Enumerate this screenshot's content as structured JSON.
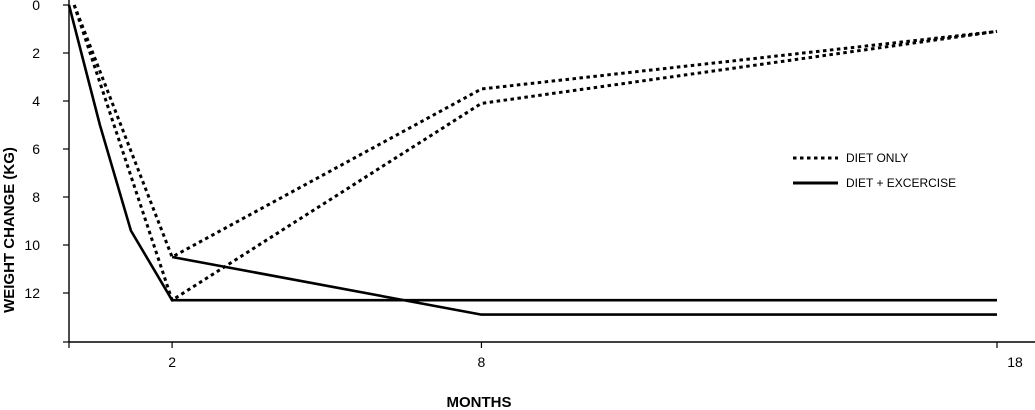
{
  "chart_data": {
    "type": "line",
    "title": "",
    "xlabel": "MONTHS",
    "ylabel": "WEIGHT CHANGE (KG)",
    "x_ticks": [
      2,
      8,
      18
    ],
    "y_ticks": [
      0,
      2,
      4,
      6,
      8,
      10,
      12
    ],
    "xlim": [
      0,
      18
    ],
    "ylim": [
      0,
      13.5
    ],
    "y_inverted": true,
    "grid": false,
    "legend_position": "right",
    "series": [
      {
        "name": "DIET ONLY",
        "style": "dotted",
        "color": "#000000",
        "traces": [
          {
            "x": [
              0.1,
              2,
              8,
              18
            ],
            "y": [
              0,
              10.5,
              3.5,
              1.1
            ]
          },
          {
            "x": [
              0.1,
              2,
              8,
              18
            ],
            "y": [
              0,
              12.3,
              4.1,
              1.1
            ]
          }
        ]
      },
      {
        "name": "DIET + EXCERCISE",
        "style": "solid",
        "color": "#000000",
        "traces": [
          {
            "x": [
              0,
              0.6,
              1.2,
              2,
              18
            ],
            "y": [
              0,
              5.0,
              9.4,
              12.3,
              12.3
            ]
          },
          {
            "x": [
              2,
              8,
              18
            ],
            "y": [
              10.5,
              12.9,
              12.9
            ]
          }
        ]
      }
    ]
  }
}
